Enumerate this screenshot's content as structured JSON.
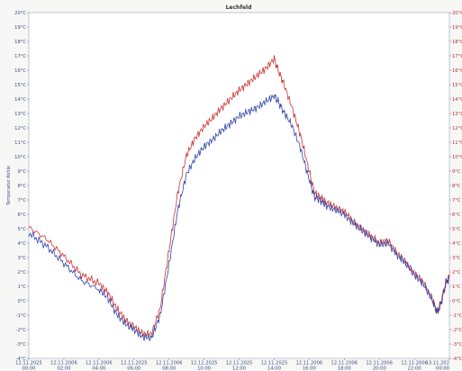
{
  "chart_data": {
    "type": "line",
    "title": "Lechfeld",
    "ylabel": "Temperatur Kohle",
    "ylim": [
      -4,
      20
    ],
    "y_ticks": [
      "20°C",
      "19°C",
      "18°C",
      "17°C",
      "16°C",
      "15°C",
      "14°C",
      "13°C",
      "12°C",
      "11°C",
      "10°C",
      "9°C",
      "8°C",
      "7°C",
      "6°C",
      "5°C",
      "4°C",
      "3°C",
      "2°C",
      "1°C",
      "0°C",
      "-1°C",
      "-2°C",
      "-3°C",
      "-4°C"
    ],
    "x_ticks": [
      [
        "12.11.2025",
        "00:00"
      ],
      [
        "12.11.2006",
        "02:00"
      ],
      [
        "12.11.2006",
        "04:00"
      ],
      [
        "12.11.2025",
        "06:00"
      ],
      [
        "12.11.2006",
        "08:00"
      ],
      [
        "12.11.2025",
        "10:00"
      ],
      [
        "12.11.2025",
        "12:00"
      ],
      [
        "12.11.2025",
        "14:00"
      ],
      [
        "12.11.2006",
        "16:00"
      ],
      [
        "12.11.2006",
        "18:00"
      ],
      [
        "12.11.2006",
        "20:00"
      ],
      [
        "12.11.2006",
        "22:00"
      ],
      [
        "13.11.202",
        "00:00"
      ]
    ],
    "x_hours": [
      0,
      24
    ],
    "series": [
      {
        "color": "#cc3333",
        "points": [
          [
            0,
            5.1
          ],
          [
            1,
            4.3
          ],
          [
            2,
            3.1
          ],
          [
            3,
            1.8
          ],
          [
            4,
            1.2
          ],
          [
            4.5,
            0.6
          ],
          [
            5,
            -0.5
          ],
          [
            5.5,
            -1.3
          ],
          [
            6,
            -1.8
          ],
          [
            6.5,
            -2.3
          ],
          [
            7,
            -2.3
          ],
          [
            7.5,
            -0.5
          ],
          [
            8,
            3.5
          ],
          [
            8.5,
            7.5
          ],
          [
            9,
            10.1
          ],
          [
            9.5,
            11.3
          ],
          [
            10,
            12.1
          ],
          [
            10.5,
            12.7
          ],
          [
            11,
            13.4
          ],
          [
            11.5,
            14.0
          ],
          [
            12,
            14.6
          ],
          [
            12.5,
            15.1
          ],
          [
            13,
            15.6
          ],
          [
            13.5,
            16.1
          ],
          [
            14,
            16.8
          ],
          [
            14.2,
            16.1
          ],
          [
            14.5,
            15.2
          ],
          [
            15,
            13.5
          ],
          [
            15.5,
            11.5
          ],
          [
            16,
            9.0
          ],
          [
            16.3,
            7.5
          ],
          [
            16.6,
            7.2
          ],
          [
            17,
            6.8
          ],
          [
            17.5,
            6.5
          ],
          [
            18,
            6.2
          ],
          [
            18.5,
            5.5
          ],
          [
            19,
            5.0
          ],
          [
            19.5,
            4.5
          ],
          [
            20,
            4.0
          ],
          [
            20.5,
            4.2
          ],
          [
            21,
            3.3
          ],
          [
            21.5,
            2.7
          ],
          [
            22,
            1.9
          ],
          [
            22.5,
            1.3
          ],
          [
            23,
            0.2
          ],
          [
            23.3,
            -0.8
          ],
          [
            23.5,
            -0.2
          ],
          [
            23.8,
            1.3
          ],
          [
            24,
            1.7
          ]
        ]
      },
      {
        "color": "#3344aa",
        "points": [
          [
            0,
            4.7
          ],
          [
            1,
            3.8
          ],
          [
            2,
            2.6
          ],
          [
            3,
            1.4
          ],
          [
            4,
            0.8
          ],
          [
            4.5,
            0.2
          ],
          [
            5,
            -0.9
          ],
          [
            5.5,
            -1.6
          ],
          [
            6,
            -2.0
          ],
          [
            6.5,
            -2.5
          ],
          [
            7,
            -2.6
          ],
          [
            7.5,
            -1.0
          ],
          [
            8,
            2.5
          ],
          [
            8.5,
            6.3
          ],
          [
            9,
            8.8
          ],
          [
            9.5,
            9.9
          ],
          [
            10,
            10.7
          ],
          [
            10.5,
            11.2
          ],
          [
            11,
            11.8
          ],
          [
            11.5,
            12.3
          ],
          [
            12,
            12.8
          ],
          [
            12.5,
            13.1
          ],
          [
            13,
            13.4
          ],
          [
            13.5,
            13.8
          ],
          [
            14,
            14.2
          ],
          [
            14.2,
            13.9
          ],
          [
            14.5,
            13.2
          ],
          [
            15,
            12.2
          ],
          [
            15.5,
            10.6
          ],
          [
            16,
            8.4
          ],
          [
            16.3,
            7.2
          ],
          [
            16.6,
            7.0
          ],
          [
            17,
            6.6
          ],
          [
            17.5,
            6.3
          ],
          [
            18,
            6.0
          ],
          [
            18.5,
            5.4
          ],
          [
            19,
            4.9
          ],
          [
            19.5,
            4.4
          ],
          [
            20,
            3.9
          ],
          [
            20.5,
            4.0
          ],
          [
            21,
            3.2
          ],
          [
            21.5,
            2.6
          ],
          [
            22,
            1.8
          ],
          [
            22.5,
            1.2
          ],
          [
            23,
            0.1
          ],
          [
            23.3,
            -0.8
          ],
          [
            23.5,
            -0.3
          ],
          [
            23.8,
            1.2
          ],
          [
            24,
            1.6
          ]
        ]
      }
    ]
  }
}
